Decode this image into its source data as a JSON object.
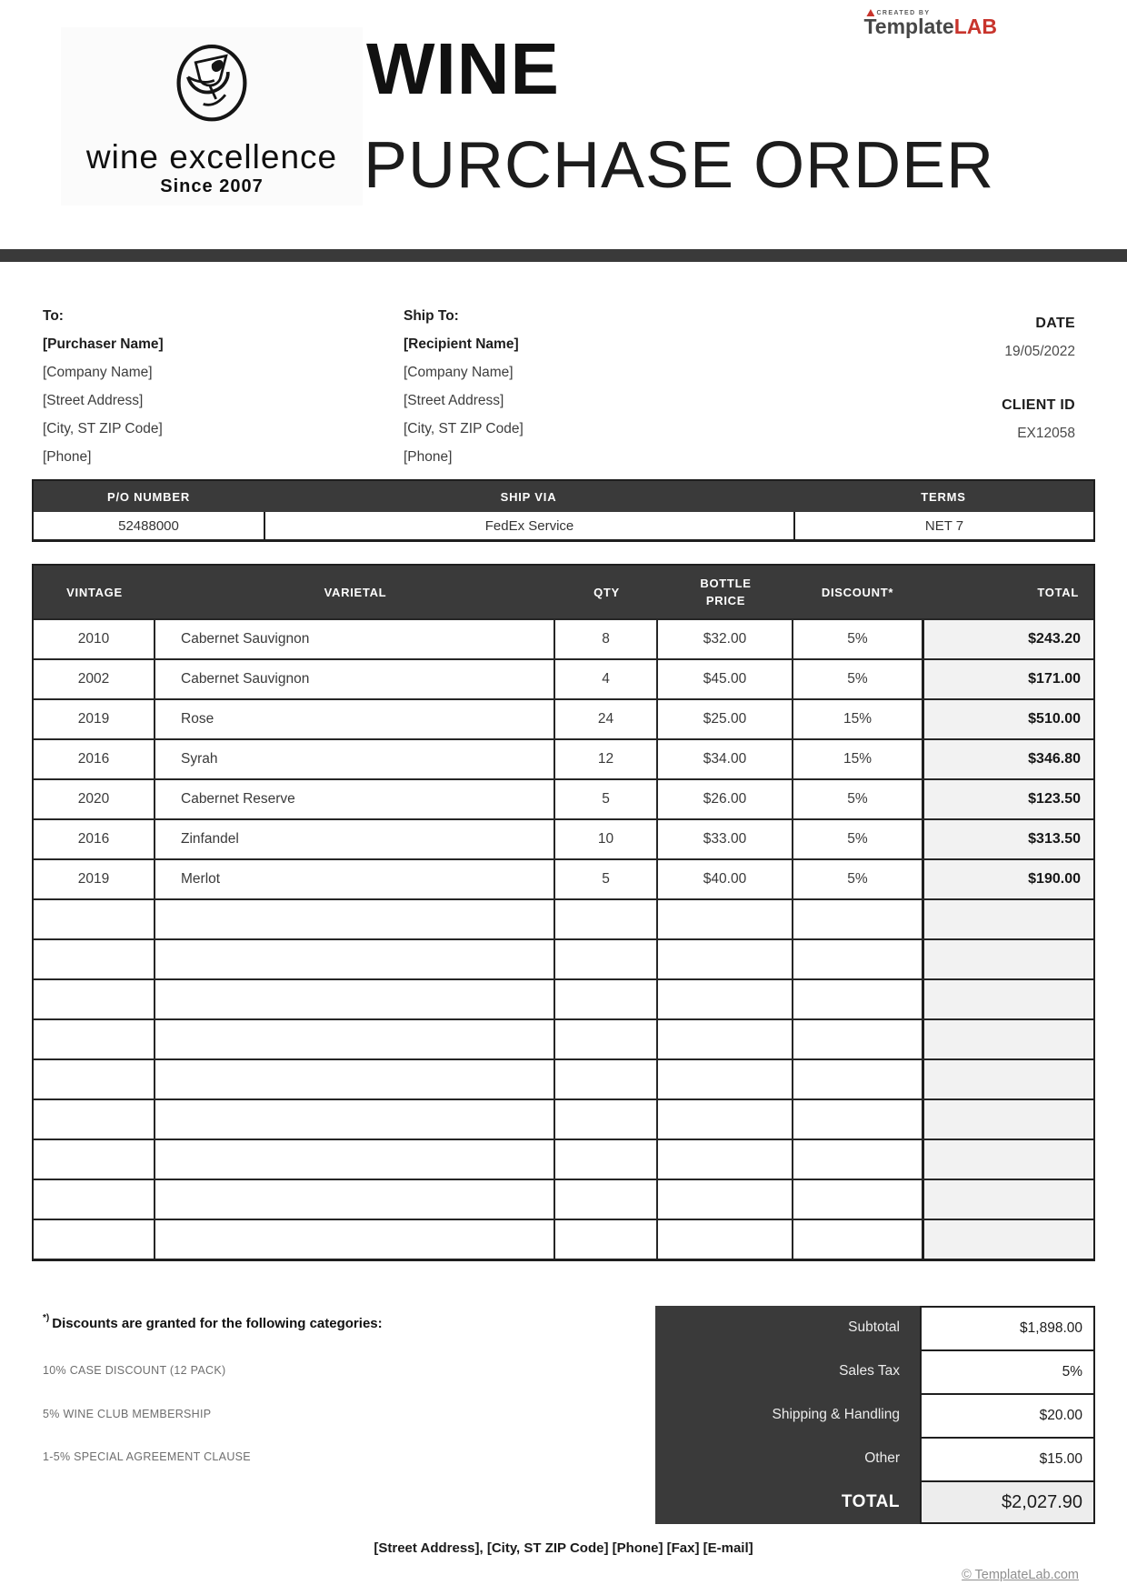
{
  "brand": {
    "created_by": "CREATED BY",
    "name_primary": "Template",
    "name_accent": "LAB"
  },
  "logo": {
    "company": "wine excellence",
    "tagline": "Since 2007"
  },
  "title": {
    "line1": "WINE",
    "line2": "PURCHASE ORDER"
  },
  "to_block": {
    "label": "To:",
    "name": "[Purchaser Name]",
    "lines": [
      "[Company Name]",
      "[Street Address]",
      "[City, ST  ZIP Code]",
      "[Phone]"
    ]
  },
  "ship_block": {
    "label": "Ship To:",
    "name": "[Recipient Name]",
    "lines": [
      "[Company Name]",
      "[Street Address]",
      "[City, ST  ZIP Code]",
      "[Phone]"
    ]
  },
  "meta": {
    "date_label": "DATE",
    "date_value": "19/05/2022",
    "client_id_label": "CLIENT ID",
    "client_id_value": "EX12058"
  },
  "po_table": {
    "headers": [
      "P/O NUMBER",
      "SHIP VIA",
      "TERMS"
    ],
    "values": [
      "52488000",
      "FedEx Service",
      "NET 7"
    ]
  },
  "items": {
    "headers": [
      "VINTAGE",
      "VARIETAL",
      "QTY",
      "BOTTLE PRICE",
      "DISCOUNT*",
      "TOTAL"
    ],
    "rows": [
      [
        "2010",
        "Cabernet Sauvignon",
        "8",
        "$32.00",
        "5%",
        "$243.20"
      ],
      [
        "2002",
        "Cabernet Sauvignon",
        "4",
        "$45.00",
        "5%",
        "$171.00"
      ],
      [
        "2019",
        "Rose",
        "24",
        "$25.00",
        "15%",
        "$510.00"
      ],
      [
        "2016",
        "Syrah",
        "12",
        "$34.00",
        "15%",
        "$346.80"
      ],
      [
        "2020",
        "Cabernet Reserve",
        "5",
        "$26.00",
        "5%",
        "$123.50"
      ],
      [
        "2016",
        "Zinfandel",
        "10",
        "$33.00",
        "5%",
        "$313.50"
      ],
      [
        "2019",
        "Merlot",
        "5",
        "$40.00",
        "5%",
        "$190.00"
      ]
    ],
    "empty_row_count": 9
  },
  "notes": {
    "heading_mark": "*)",
    "heading": "Discounts are granted for the following categories:",
    "items": [
      "10% CASE DISCOUNT (12 PACK)",
      "5% WINE CLUB MEMBERSHIP",
      "1-5% SPECIAL AGREEMENT CLAUSE"
    ]
  },
  "totals": {
    "rows": [
      {
        "label": "Subtotal",
        "value": "$1,898.00",
        "emphasis": false
      },
      {
        "label": "Sales Tax",
        "value": "5%",
        "emphasis": false
      },
      {
        "label": "Shipping & Handling",
        "value": "$20.00",
        "emphasis": false
      },
      {
        "label": "Other",
        "value": "$15.00",
        "emphasis": false
      },
      {
        "label": "TOTAL",
        "value": "$2,027.90",
        "emphasis": true
      }
    ]
  },
  "footer": {
    "address": "[Street Address], [City, ST  ZIP Code]  [Phone]  [Fax]  [E-mail]",
    "copyright": "© TemplateLab.com"
  },
  "colors": {
    "bar": "#3a3a3a",
    "accent_red": "#c8342c",
    "total_column_bg": "#f2f2f2"
  }
}
